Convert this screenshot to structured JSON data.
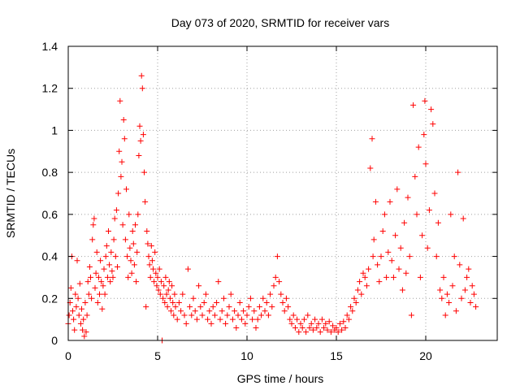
{
  "chart_data": {
    "type": "scatter",
    "title": "Day 073 of 2020, SRMTID for receiver vars",
    "xlabel": "GPS time / hours",
    "ylabel": "SRMTID / TECUs",
    "xlim": [
      0,
      24
    ],
    "ylim": [
      0,
      1.4
    ],
    "grid": true,
    "marker": "+",
    "color": "#ff0000",
    "x_ticks": [
      0,
      5,
      10,
      15,
      20
    ],
    "x_tick_labels": [
      "0",
      "5",
      "10",
      "15",
      "20"
    ],
    "y_ticks": [
      0,
      0.2,
      0.4,
      0.6,
      0.8,
      1.0,
      1.2,
      1.4
    ],
    "y_tick_labels": [
      "0",
      "0.2",
      "0.4",
      "0.6",
      "0.8",
      "1",
      "1.2",
      "1.4"
    ],
    "series": [
      {
        "name": "SRMTID",
        "points": [
          [
            0.0,
            0.08
          ],
          [
            0.05,
            0.12
          ],
          [
            0.1,
            0.18
          ],
          [
            0.15,
            0.25
          ],
          [
            0.2,
            0.4
          ],
          [
            0.25,
            0.14
          ],
          [
            0.3,
            0.1
          ],
          [
            0.35,
            0.05
          ],
          [
            0.4,
            0.22
          ],
          [
            0.45,
            0.16
          ],
          [
            0.5,
            0.38
          ],
          [
            0.55,
            0.2
          ],
          [
            0.6,
            0.12
          ],
          [
            0.65,
            0.27
          ],
          [
            0.7,
            0.08
          ],
          [
            0.75,
            0.15
          ],
          [
            0.8,
            0.05
          ],
          [
            0.85,
            0.1
          ],
          [
            0.9,
            0.02
          ],
          [
            0.95,
            0.18
          ],
          [
            1.0,
            0.04
          ],
          [
            1.05,
            0.12
          ],
          [
            1.1,
            0.28
          ],
          [
            1.15,
            0.22
          ],
          [
            1.2,
            0.35
          ],
          [
            1.25,
            0.3
          ],
          [
            1.3,
            0.2
          ],
          [
            1.35,
            0.48
          ],
          [
            1.4,
            0.55
          ],
          [
            1.45,
            0.58
          ],
          [
            1.5,
            0.25
          ],
          [
            1.55,
            0.32
          ],
          [
            1.6,
            0.42
          ],
          [
            1.65,
            0.18
          ],
          [
            1.7,
            0.3
          ],
          [
            1.75,
            0.22
          ],
          [
            1.8,
            0.38
          ],
          [
            1.85,
            0.28
          ],
          [
            1.9,
            0.15
          ],
          [
            1.95,
            0.26
          ],
          [
            2.0,
            0.34
          ],
          [
            2.05,
            0.22
          ],
          [
            2.1,
            0.4
          ],
          [
            2.15,
            0.45
          ],
          [
            2.2,
            0.3
          ],
          [
            2.25,
            0.52
          ],
          [
            2.3,
            0.36
          ],
          [
            2.35,
            0.28
          ],
          [
            2.4,
            0.42
          ],
          [
            2.45,
            0.33
          ],
          [
            2.5,
            0.3
          ],
          [
            2.55,
            0.48
          ],
          [
            2.6,
            0.58
          ],
          [
            2.65,
            0.4
          ],
          [
            2.7,
            0.62
          ],
          [
            2.75,
            0.35
          ],
          [
            2.8,
            0.7
          ],
          [
            2.85,
            0.9
          ],
          [
            2.9,
            1.14
          ],
          [
            2.95,
            0.78
          ],
          [
            3.0,
            0.85
          ],
          [
            3.05,
            0.55
          ],
          [
            3.1,
            1.05
          ],
          [
            3.15,
            0.96
          ],
          [
            3.2,
            0.48
          ],
          [
            3.25,
            0.72
          ],
          [
            3.3,
            0.4
          ],
          [
            3.35,
            0.3
          ],
          [
            3.4,
            0.6
          ],
          [
            3.45,
            0.44
          ],
          [
            3.5,
            0.38
          ],
          [
            3.55,
            0.32
          ],
          [
            3.6,
            0.52
          ],
          [
            3.65,
            0.46
          ],
          [
            3.7,
            0.36
          ],
          [
            3.75,
            0.55
          ],
          [
            3.8,
            0.28
          ],
          [
            3.85,
            0.42
          ],
          [
            3.9,
            0.6
          ],
          [
            3.95,
            0.88
          ],
          [
            4.0,
            1.02
          ],
          [
            4.05,
            0.95
          ],
          [
            4.1,
            1.26
          ],
          [
            4.15,
            1.2
          ],
          [
            4.2,
            0.98
          ],
          [
            4.25,
            0.8
          ],
          [
            4.3,
            0.66
          ],
          [
            4.35,
            0.16
          ],
          [
            4.4,
            0.52
          ],
          [
            4.45,
            0.46
          ],
          [
            4.5,
            0.4
          ],
          [
            4.55,
            0.36
          ],
          [
            4.6,
            0.3
          ],
          [
            4.65,
            0.45
          ],
          [
            4.7,
            0.38
          ],
          [
            4.75,
            0.34
          ],
          [
            4.8,
            0.28
          ],
          [
            4.85,
            0.42
          ],
          [
            4.9,
            0.32
          ],
          [
            4.95,
            0.26
          ],
          [
            5.0,
            0.3
          ],
          [
            5.05,
            0.24
          ],
          [
            5.1,
            0.34
          ],
          [
            5.15,
            0.22
          ],
          [
            5.2,
            0.28
          ],
          [
            5.25,
            0.0
          ],
          [
            5.3,
            0.2
          ],
          [
            5.35,
            0.26
          ],
          [
            5.4,
            0.18
          ],
          [
            5.45,
            0.3
          ],
          [
            5.5,
            0.22
          ],
          [
            5.55,
            0.16
          ],
          [
            5.6,
            0.24
          ],
          [
            5.65,
            0.28
          ],
          [
            5.7,
            0.2
          ],
          [
            5.75,
            0.14
          ],
          [
            5.8,
            0.26
          ],
          [
            5.85,
            0.18
          ],
          [
            5.9,
            0.12
          ],
          [
            5.95,
            0.22
          ],
          [
            6.0,
            0.16
          ],
          [
            6.1,
            0.1
          ],
          [
            6.2,
            0.18
          ],
          [
            6.3,
            0.14
          ],
          [
            6.4,
            0.22
          ],
          [
            6.5,
            0.12
          ],
          [
            6.6,
            0.08
          ],
          [
            6.7,
            0.34
          ],
          [
            6.8,
            0.16
          ],
          [
            6.9,
            0.12
          ],
          [
            7.0,
            0.2
          ],
          [
            7.1,
            0.14
          ],
          [
            7.2,
            0.1
          ],
          [
            7.3,
            0.26
          ],
          [
            7.4,
            0.16
          ],
          [
            7.5,
            0.12
          ],
          [
            7.6,
            0.18
          ],
          [
            7.7,
            0.22
          ],
          [
            7.8,
            0.1
          ],
          [
            7.9,
            0.14
          ],
          [
            8.0,
            0.08
          ],
          [
            8.1,
            0.16
          ],
          [
            8.2,
            0.12
          ],
          [
            8.3,
            0.18
          ],
          [
            8.4,
            0.28
          ],
          [
            8.5,
            0.1
          ],
          [
            8.6,
            0.14
          ],
          [
            8.7,
            0.2
          ],
          [
            8.8,
            0.08
          ],
          [
            8.9,
            0.12
          ],
          [
            9.0,
            0.16
          ],
          [
            9.1,
            0.22
          ],
          [
            9.2,
            0.1
          ],
          [
            9.3,
            0.14
          ],
          [
            9.4,
            0.06
          ],
          [
            9.5,
            0.12
          ],
          [
            9.6,
            0.18
          ],
          [
            9.7,
            0.1
          ],
          [
            9.8,
            0.14
          ],
          [
            9.9,
            0.08
          ],
          [
            10.0,
            0.12
          ],
          [
            10.1,
            0.16
          ],
          [
            10.2,
            0.2
          ],
          [
            10.3,
            0.1
          ],
          [
            10.4,
            0.14
          ],
          [
            10.5,
            0.06
          ],
          [
            10.6,
            0.1
          ],
          [
            10.7,
            0.16
          ],
          [
            10.8,
            0.12
          ],
          [
            10.9,
            0.2
          ],
          [
            11.0,
            0.14
          ],
          [
            11.1,
            0.18
          ],
          [
            11.2,
            0.12
          ],
          [
            11.3,
            0.22
          ],
          [
            11.4,
            0.16
          ],
          [
            11.5,
            0.26
          ],
          [
            11.6,
            0.3
          ],
          [
            11.7,
            0.4
          ],
          [
            11.8,
            0.28
          ],
          [
            11.9,
            0.22
          ],
          [
            12.0,
            0.18
          ],
          [
            12.1,
            0.14
          ],
          [
            12.2,
            0.2
          ],
          [
            12.3,
            0.16
          ],
          [
            12.4,
            0.1
          ],
          [
            12.5,
            0.08
          ],
          [
            12.6,
            0.12
          ],
          [
            12.7,
            0.06
          ],
          [
            12.8,
            0.1
          ],
          [
            12.9,
            0.04
          ],
          [
            13.0,
            0.08
          ],
          [
            13.1,
            0.06
          ],
          [
            13.2,
            0.1
          ],
          [
            13.3,
            0.04
          ],
          [
            13.4,
            0.12
          ],
          [
            13.5,
            0.06
          ],
          [
            13.6,
            0.08
          ],
          [
            13.7,
            0.05
          ],
          [
            13.8,
            0.1
          ],
          [
            13.9,
            0.06
          ],
          [
            14.0,
            0.08
          ],
          [
            14.1,
            0.04
          ],
          [
            14.2,
            0.1
          ],
          [
            14.3,
            0.06
          ],
          [
            14.4,
            0.08
          ],
          [
            14.5,
            0.05
          ],
          [
            14.6,
            0.09
          ],
          [
            14.7,
            0.04
          ],
          [
            14.8,
            0.07
          ],
          [
            14.9,
            0.05
          ],
          [
            15.0,
            0.06
          ],
          [
            15.1,
            0.04
          ],
          [
            15.2,
            0.08
          ],
          [
            15.3,
            0.05
          ],
          [
            15.4,
            0.09
          ],
          [
            15.5,
            0.06
          ],
          [
            15.6,
            0.12
          ],
          [
            15.7,
            0.1
          ],
          [
            15.8,
            0.16
          ],
          [
            15.9,
            0.14
          ],
          [
            16.0,
            0.2
          ],
          [
            16.1,
            0.18
          ],
          [
            16.2,
            0.24
          ],
          [
            16.3,
            0.28
          ],
          [
            16.4,
            0.22
          ],
          [
            16.5,
            0.32
          ],
          [
            16.6,
            0.3
          ],
          [
            16.7,
            0.26
          ],
          [
            16.8,
            0.34
          ],
          [
            16.9,
            0.82
          ],
          [
            17.0,
            0.96
          ],
          [
            17.05,
            0.4
          ],
          [
            17.1,
            0.48
          ],
          [
            17.2,
            0.66
          ],
          [
            17.3,
            0.36
          ],
          [
            17.4,
            0.28
          ],
          [
            17.5,
            0.4
          ],
          [
            17.6,
            0.52
          ],
          [
            17.7,
            0.6
          ],
          [
            17.8,
            0.3
          ],
          [
            17.9,
            0.42
          ],
          [
            18.0,
            0.66
          ],
          [
            18.1,
            0.38
          ],
          [
            18.2,
            0.3
          ],
          [
            18.3,
            0.5
          ],
          [
            18.4,
            0.72
          ],
          [
            18.5,
            0.34
          ],
          [
            18.6,
            0.44
          ],
          [
            18.7,
            0.24
          ],
          [
            18.8,
            0.56
          ],
          [
            18.9,
            0.32
          ],
          [
            19.0,
            0.68
          ],
          [
            19.1,
            0.4
          ],
          [
            19.2,
            0.12
          ],
          [
            19.3,
            1.12
          ],
          [
            19.4,
            0.78
          ],
          [
            19.5,
            0.6
          ],
          [
            19.6,
            0.92
          ],
          [
            19.7,
            0.3
          ],
          [
            19.8,
            0.5
          ],
          [
            19.9,
            0.98
          ],
          [
            19.95,
            1.14
          ],
          [
            20.0,
            0.84
          ],
          [
            20.1,
            0.44
          ],
          [
            20.2,
            0.62
          ],
          [
            20.3,
            1.1
          ],
          [
            20.4,
            1.03
          ],
          [
            20.5,
            0.7
          ],
          [
            20.6,
            0.4
          ],
          [
            20.7,
            0.56
          ],
          [
            20.8,
            0.24
          ],
          [
            20.9,
            0.2
          ],
          [
            21.0,
            0.3
          ],
          [
            21.1,
            0.12
          ],
          [
            21.2,
            0.22
          ],
          [
            21.3,
            0.18
          ],
          [
            21.4,
            0.6
          ],
          [
            21.5,
            0.26
          ],
          [
            21.6,
            0.4
          ],
          [
            21.7,
            0.14
          ],
          [
            21.8,
            0.8
          ],
          [
            21.9,
            0.36
          ],
          [
            22.0,
            0.2
          ],
          [
            22.1,
            0.58
          ],
          [
            22.2,
            0.24
          ],
          [
            22.3,
            0.3
          ],
          [
            22.4,
            0.34
          ],
          [
            22.5,
            0.18
          ],
          [
            22.6,
            0.26
          ],
          [
            22.7,
            0.22
          ],
          [
            22.8,
            0.16
          ]
        ]
      }
    ]
  }
}
